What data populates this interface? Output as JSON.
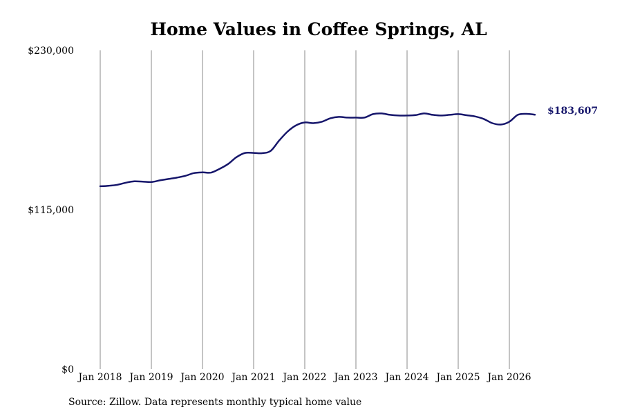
{
  "chart_data": {
    "type": "line",
    "title": "Home Values in Coffee Springs, AL",
    "xlabel": "",
    "ylabel": "",
    "x_ticks": [
      "Jan 2018",
      "Jan 2019",
      "Jan 2020",
      "Jan 2021",
      "Jan 2022",
      "Jan 2023",
      "Jan 2024",
      "Jan 2025",
      "Jan 2026"
    ],
    "y_ticks": [
      "$0",
      "$115,000",
      "$230,000"
    ],
    "ylim": [
      0,
      230000
    ],
    "xlim": [
      "2018-01",
      "2026-07"
    ],
    "grid": "vertical",
    "line_color": "#16166b",
    "end_label": "$183,607",
    "series": [
      {
        "x": [
          "2018-01",
          "2018-03",
          "2018-05",
          "2018-07",
          "2018-09",
          "2018-11",
          "2019-01",
          "2019-03",
          "2019-05",
          "2019-07",
          "2019-09",
          "2019-11",
          "2020-01",
          "2020-03",
          "2020-05",
          "2020-07",
          "2020-09",
          "2020-11",
          "2021-01",
          "2021-03",
          "2021-05",
          "2021-07",
          "2021-09",
          "2021-11",
          "2022-01",
          "2022-03",
          "2022-05",
          "2022-07",
          "2022-09",
          "2022-11",
          "2023-01",
          "2023-03",
          "2023-05",
          "2023-07",
          "2023-09",
          "2023-11",
          "2024-01",
          "2024-03",
          "2024-05",
          "2024-07",
          "2024-09",
          "2024-11",
          "2025-01",
          "2025-03",
          "2025-05",
          "2025-07",
          "2025-09",
          "2025-11",
          "2026-01",
          "2026-03",
          "2026-05",
          "2026-07"
        ],
        "values": [
          132000,
          132300,
          133000,
          134500,
          135500,
          135300,
          135000,
          136200,
          137200,
          138200,
          139500,
          141500,
          142000,
          141800,
          144500,
          148000,
          153000,
          156000,
          156000,
          155800,
          157500,
          165000,
          171500,
          176000,
          178000,
          177500,
          178500,
          181000,
          182000,
          181500,
          181500,
          181500,
          184000,
          184500,
          183500,
          183000,
          183000,
          183300,
          184500,
          183500,
          183000,
          183500,
          184000,
          183200,
          182300,
          180500,
          177500,
          176500,
          178500,
          183500,
          184200,
          183607
        ]
      }
    ]
  },
  "source_note": "Source: Zillow. Data represents monthly typical home value"
}
